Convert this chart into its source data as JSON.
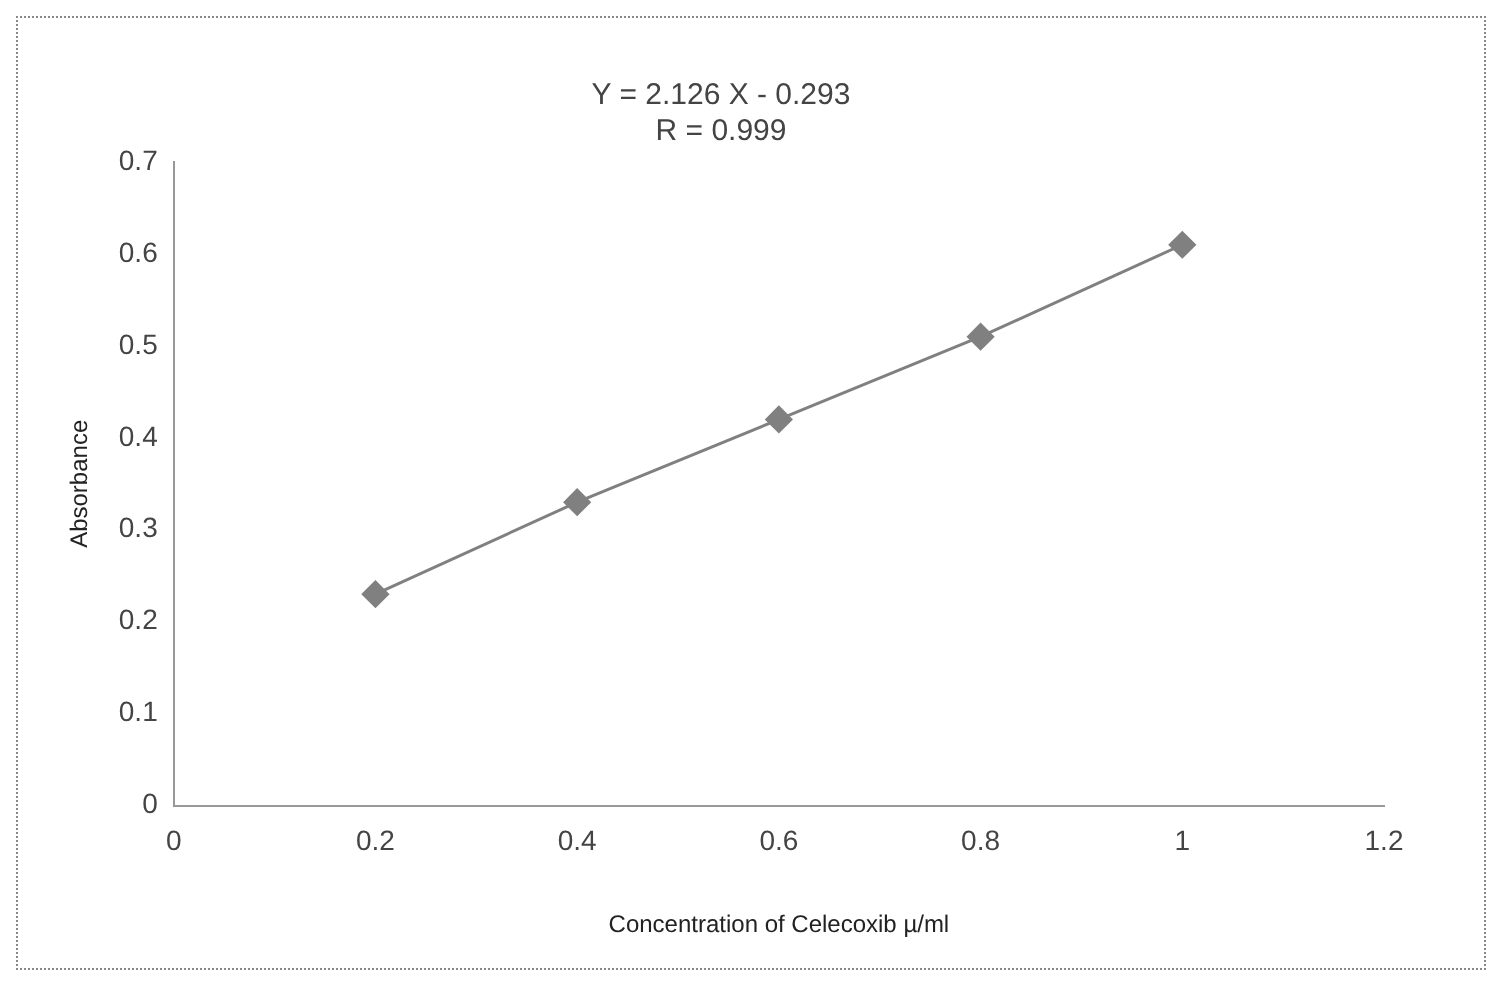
{
  "chart_data": {
    "type": "line",
    "title": [
      "Y = 2.126 X - 0.293",
      "R = 0.999"
    ],
    "xlabel": "Concentration of Celecoxib µ/ml",
    "ylabel": "Absorbance",
    "x": [
      0.2,
      0.4,
      0.6,
      0.8,
      1
    ],
    "series": [
      {
        "color": "#808080",
        "values": [
          0.23,
          0.33,
          0.42,
          0.51,
          0.61
        ]
      }
    ],
    "xlim": [
      0,
      1.2
    ],
    "xticks": [
      0,
      0.2,
      0.4,
      0.6,
      0.8,
      1,
      1.2
    ],
    "ylim": [
      0,
      0.7
    ],
    "yticks": [
      0,
      0.1,
      0.2,
      0.3,
      0.4,
      0.5,
      0.6,
      0.7
    ],
    "grid": false,
    "legend": false,
    "marker": "diamond",
    "line_style": "solid"
  }
}
